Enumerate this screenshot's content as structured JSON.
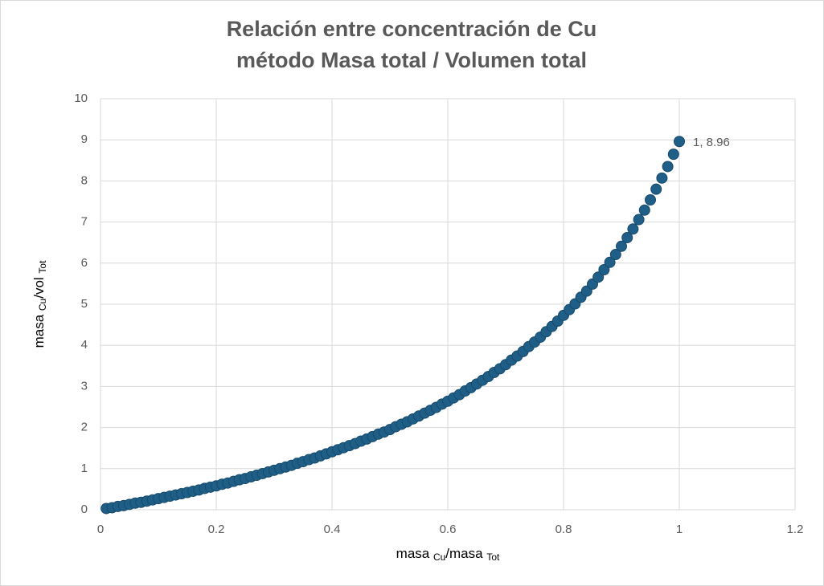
{
  "chart_data": {
    "type": "scatter",
    "title": [
      "Relación entre concentración de Cu",
      "método Masa total / Volumen total"
    ],
    "xlabel": [
      {
        "text": "masa "
      },
      {
        "text": "Cu",
        "subscript": true
      },
      {
        "text": "/masa "
      },
      {
        "text": "Tot",
        "subscript": true
      }
    ],
    "ylabel": [
      {
        "text": "masa "
      },
      {
        "text": "Cu",
        "subscript": true
      },
      {
        "text": "/vol "
      },
      {
        "text": "Tot",
        "subscript": true
      }
    ],
    "color": "#1f5f87",
    "grid": true,
    "xlim": [
      0,
      1.2
    ],
    "xticks": [
      0,
      0.2,
      0.4,
      0.6,
      0.8,
      1,
      1.2
    ],
    "ylim": [
      0,
      10
    ],
    "yticks": [
      0,
      1,
      2,
      3,
      4,
      5,
      6,
      7,
      8,
      9,
      10
    ],
    "x": [
      0.01,
      0.02,
      0.03,
      0.04,
      0.05,
      0.06,
      0.07,
      0.08,
      0.09,
      0.1,
      0.11,
      0.12,
      0.13,
      0.14,
      0.15,
      0.16,
      0.17,
      0.18,
      0.19,
      0.2,
      0.21,
      0.22,
      0.23,
      0.24,
      0.25,
      0.26,
      0.27,
      0.28,
      0.29,
      0.3,
      0.31,
      0.32,
      0.33,
      0.34,
      0.35,
      0.36,
      0.37,
      0.38,
      0.39,
      0.4,
      0.41,
      0.42,
      0.43,
      0.44,
      0.45,
      0.46,
      0.47,
      0.48,
      0.49,
      0.5,
      0.51,
      0.52,
      0.53,
      0.54,
      0.55,
      0.56,
      0.57,
      0.58,
      0.59,
      0.6,
      0.61,
      0.62,
      0.63,
      0.64,
      0.65,
      0.66,
      0.67,
      0.68,
      0.69,
      0.7,
      0.71,
      0.72,
      0.73,
      0.74,
      0.75,
      0.76,
      0.77,
      0.78,
      0.79,
      0.8,
      0.81,
      0.82,
      0.83,
      0.84,
      0.85,
      0.86,
      0.87,
      0.88,
      0.89,
      0.9,
      0.91,
      0.92,
      0.93,
      0.94,
      0.95,
      0.96,
      0.97,
      0.98,
      0.99,
      1
    ],
    "values": [
      0.03,
      0.05,
      0.08,
      0.1,
      0.13,
      0.16,
      0.18,
      0.21,
      0.24,
      0.27,
      0.3,
      0.33,
      0.36,
      0.39,
      0.42,
      0.45,
      0.48,
      0.52,
      0.55,
      0.58,
      0.62,
      0.65,
      0.69,
      0.73,
      0.76,
      0.8,
      0.84,
      0.88,
      0.92,
      0.96,
      1.0,
      1.04,
      1.08,
      1.13,
      1.17,
      1.22,
      1.26,
      1.31,
      1.36,
      1.41,
      1.46,
      1.51,
      1.56,
      1.61,
      1.67,
      1.72,
      1.78,
      1.84,
      1.89,
      1.95,
      2.02,
      2.08,
      2.14,
      2.21,
      2.28,
      2.35,
      2.42,
      2.49,
      2.57,
      2.64,
      2.72,
      2.8,
      2.89,
      2.97,
      3.06,
      3.15,
      3.24,
      3.34,
      3.43,
      3.53,
      3.64,
      3.74,
      3.85,
      3.97,
      4.08,
      4.2,
      4.33,
      4.46,
      4.59,
      4.73,
      4.87,
      5.01,
      5.17,
      5.32,
      5.49,
      5.66,
      5.84,
      6.02,
      6.21,
      6.41,
      6.62,
      6.83,
      7.06,
      7.29,
      7.54,
      7.8,
      8.07,
      8.35,
      8.65,
      8.96
    ],
    "value_labels": [
      null,
      null,
      null,
      null,
      null,
      null,
      null,
      null,
      null,
      null,
      null,
      null,
      null,
      null,
      null,
      null,
      null,
      null,
      null,
      null,
      null,
      null,
      null,
      null,
      null,
      null,
      null,
      null,
      null,
      null,
      null,
      null,
      null,
      null,
      null,
      null,
      null,
      null,
      null,
      null,
      null,
      null,
      null,
      null,
      null,
      null,
      null,
      null,
      null,
      null,
      null,
      null,
      null,
      null,
      null,
      null,
      null,
      null,
      null,
      null,
      null,
      null,
      null,
      null,
      null,
      null,
      null,
      null,
      null,
      null,
      null,
      null,
      null,
      null,
      null,
      null,
      null,
      null,
      null,
      null,
      null,
      null,
      null,
      null,
      null,
      null,
      null,
      null,
      null,
      null,
      null,
      null,
      null,
      null,
      null,
      null,
      null,
      null,
      null,
      "1, 8.96"
    ]
  }
}
